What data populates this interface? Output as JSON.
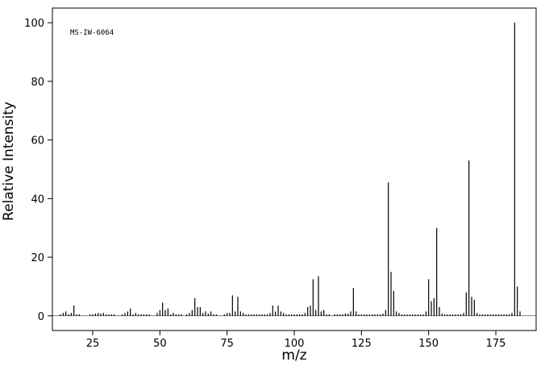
{
  "chart_data": {
    "type": "stem",
    "annotation": "MS-IW-6064",
    "xlabel": "m/z",
    "ylabel": "Relative Intensity",
    "x": [
      13,
      14,
      15,
      16,
      17,
      18,
      19,
      20,
      24,
      25,
      26,
      27,
      28,
      29,
      30,
      31,
      32,
      33,
      36,
      37,
      38,
      39,
      40,
      41,
      42,
      43,
      44,
      45,
      46,
      49,
      50,
      51,
      52,
      53,
      54,
      55,
      56,
      57,
      58,
      60,
      61,
      62,
      63,
      64,
      65,
      66,
      67,
      68,
      69,
      70,
      71,
      74,
      75,
      76,
      77,
      78,
      79,
      80,
      81,
      82,
      83,
      84,
      85,
      86,
      87,
      88,
      89,
      90,
      91,
      92,
      93,
      94,
      95,
      96,
      97,
      98,
      99,
      100,
      101,
      102,
      103,
      104,
      105,
      106,
      107,
      108,
      109,
      110,
      111,
      112,
      113,
      115,
      116,
      117,
      118,
      119,
      120,
      121,
      122,
      123,
      124,
      125,
      126,
      127,
      128,
      129,
      130,
      131,
      132,
      133,
      134,
      135,
      136,
      137,
      138,
      139,
      140,
      141,
      142,
      143,
      144,
      145,
      146,
      147,
      148,
      149,
      150,
      151,
      152,
      153,
      154,
      155,
      156,
      157,
      158,
      159,
      160,
      161,
      162,
      163,
      164,
      165,
      166,
      167,
      168,
      169,
      170,
      171,
      172,
      173,
      174,
      175,
      176,
      177,
      178,
      179,
      180,
      181,
      182,
      183,
      184
    ],
    "values": [
      0.5,
      1,
      1.5,
      0.5,
      1,
      3.5,
      0.5,
      0.5,
      0.5,
      0.5,
      0.8,
      1,
      0.8,
      1,
      0.5,
      0.5,
      0.5,
      0.5,
      0.5,
      1,
      1.5,
      2.5,
      0.5,
      1,
      0.5,
      0.5,
      0.5,
      0.5,
      0.5,
      1,
      2,
      4.5,
      2,
      2.5,
      0.5,
      1,
      0.5,
      0.5,
      0.5,
      0.5,
      1,
      2,
      6,
      3,
      3,
      1,
      1.5,
      0.8,
      1.5,
      0.5,
      0.5,
      0.5,
      1,
      1,
      7,
      1.5,
      6.5,
      1.5,
      1,
      0.5,
      0.5,
      0.5,
      0.5,
      0.5,
      0.5,
      0.5,
      0.5,
      0.5,
      1,
      3.5,
      1.5,
      3.5,
      1.5,
      1,
      0.5,
      0.5,
      0.5,
      0.5,
      0.5,
      0.5,
      0.5,
      1,
      3,
      3.5,
      12.5,
      2,
      13.5,
      1.5,
      2,
      0.5,
      0.5,
      0.5,
      0.5,
      0.5,
      0.5,
      0.8,
      0.8,
      1.5,
      9.5,
      1.5,
      0.5,
      0.5,
      0.5,
      0.5,
      0.5,
      0.5,
      0.5,
      0.5,
      0.5,
      0.8,
      2,
      45.5,
      15,
      8.5,
      1.5,
      1,
      0.5,
      0.5,
      0.5,
      0.5,
      0.5,
      0.5,
      0.5,
      0.5,
      0.5,
      1.5,
      12.5,
      5,
      6,
      30,
      3,
      0.8,
      0.5,
      0.5,
      0.5,
      0.5,
      0.5,
      0.5,
      0.5,
      1,
      8,
      53,
      6.5,
      5.5,
      1,
      0.5,
      0.5,
      0.5,
      0.5,
      0.5,
      0.5,
      0.5,
      0.5,
      0.5,
      0.5,
      0.5,
      0.5,
      1,
      100,
      10,
      1.5
    ],
    "color": "#000000",
    "xlim": [
      10,
      190
    ],
    "xticks": [
      25,
      50,
      75,
      100,
      125,
      150,
      175
    ],
    "ylim": [
      -5,
      105
    ],
    "yticks": [
      0,
      20,
      40,
      60,
      80,
      100
    ]
  }
}
